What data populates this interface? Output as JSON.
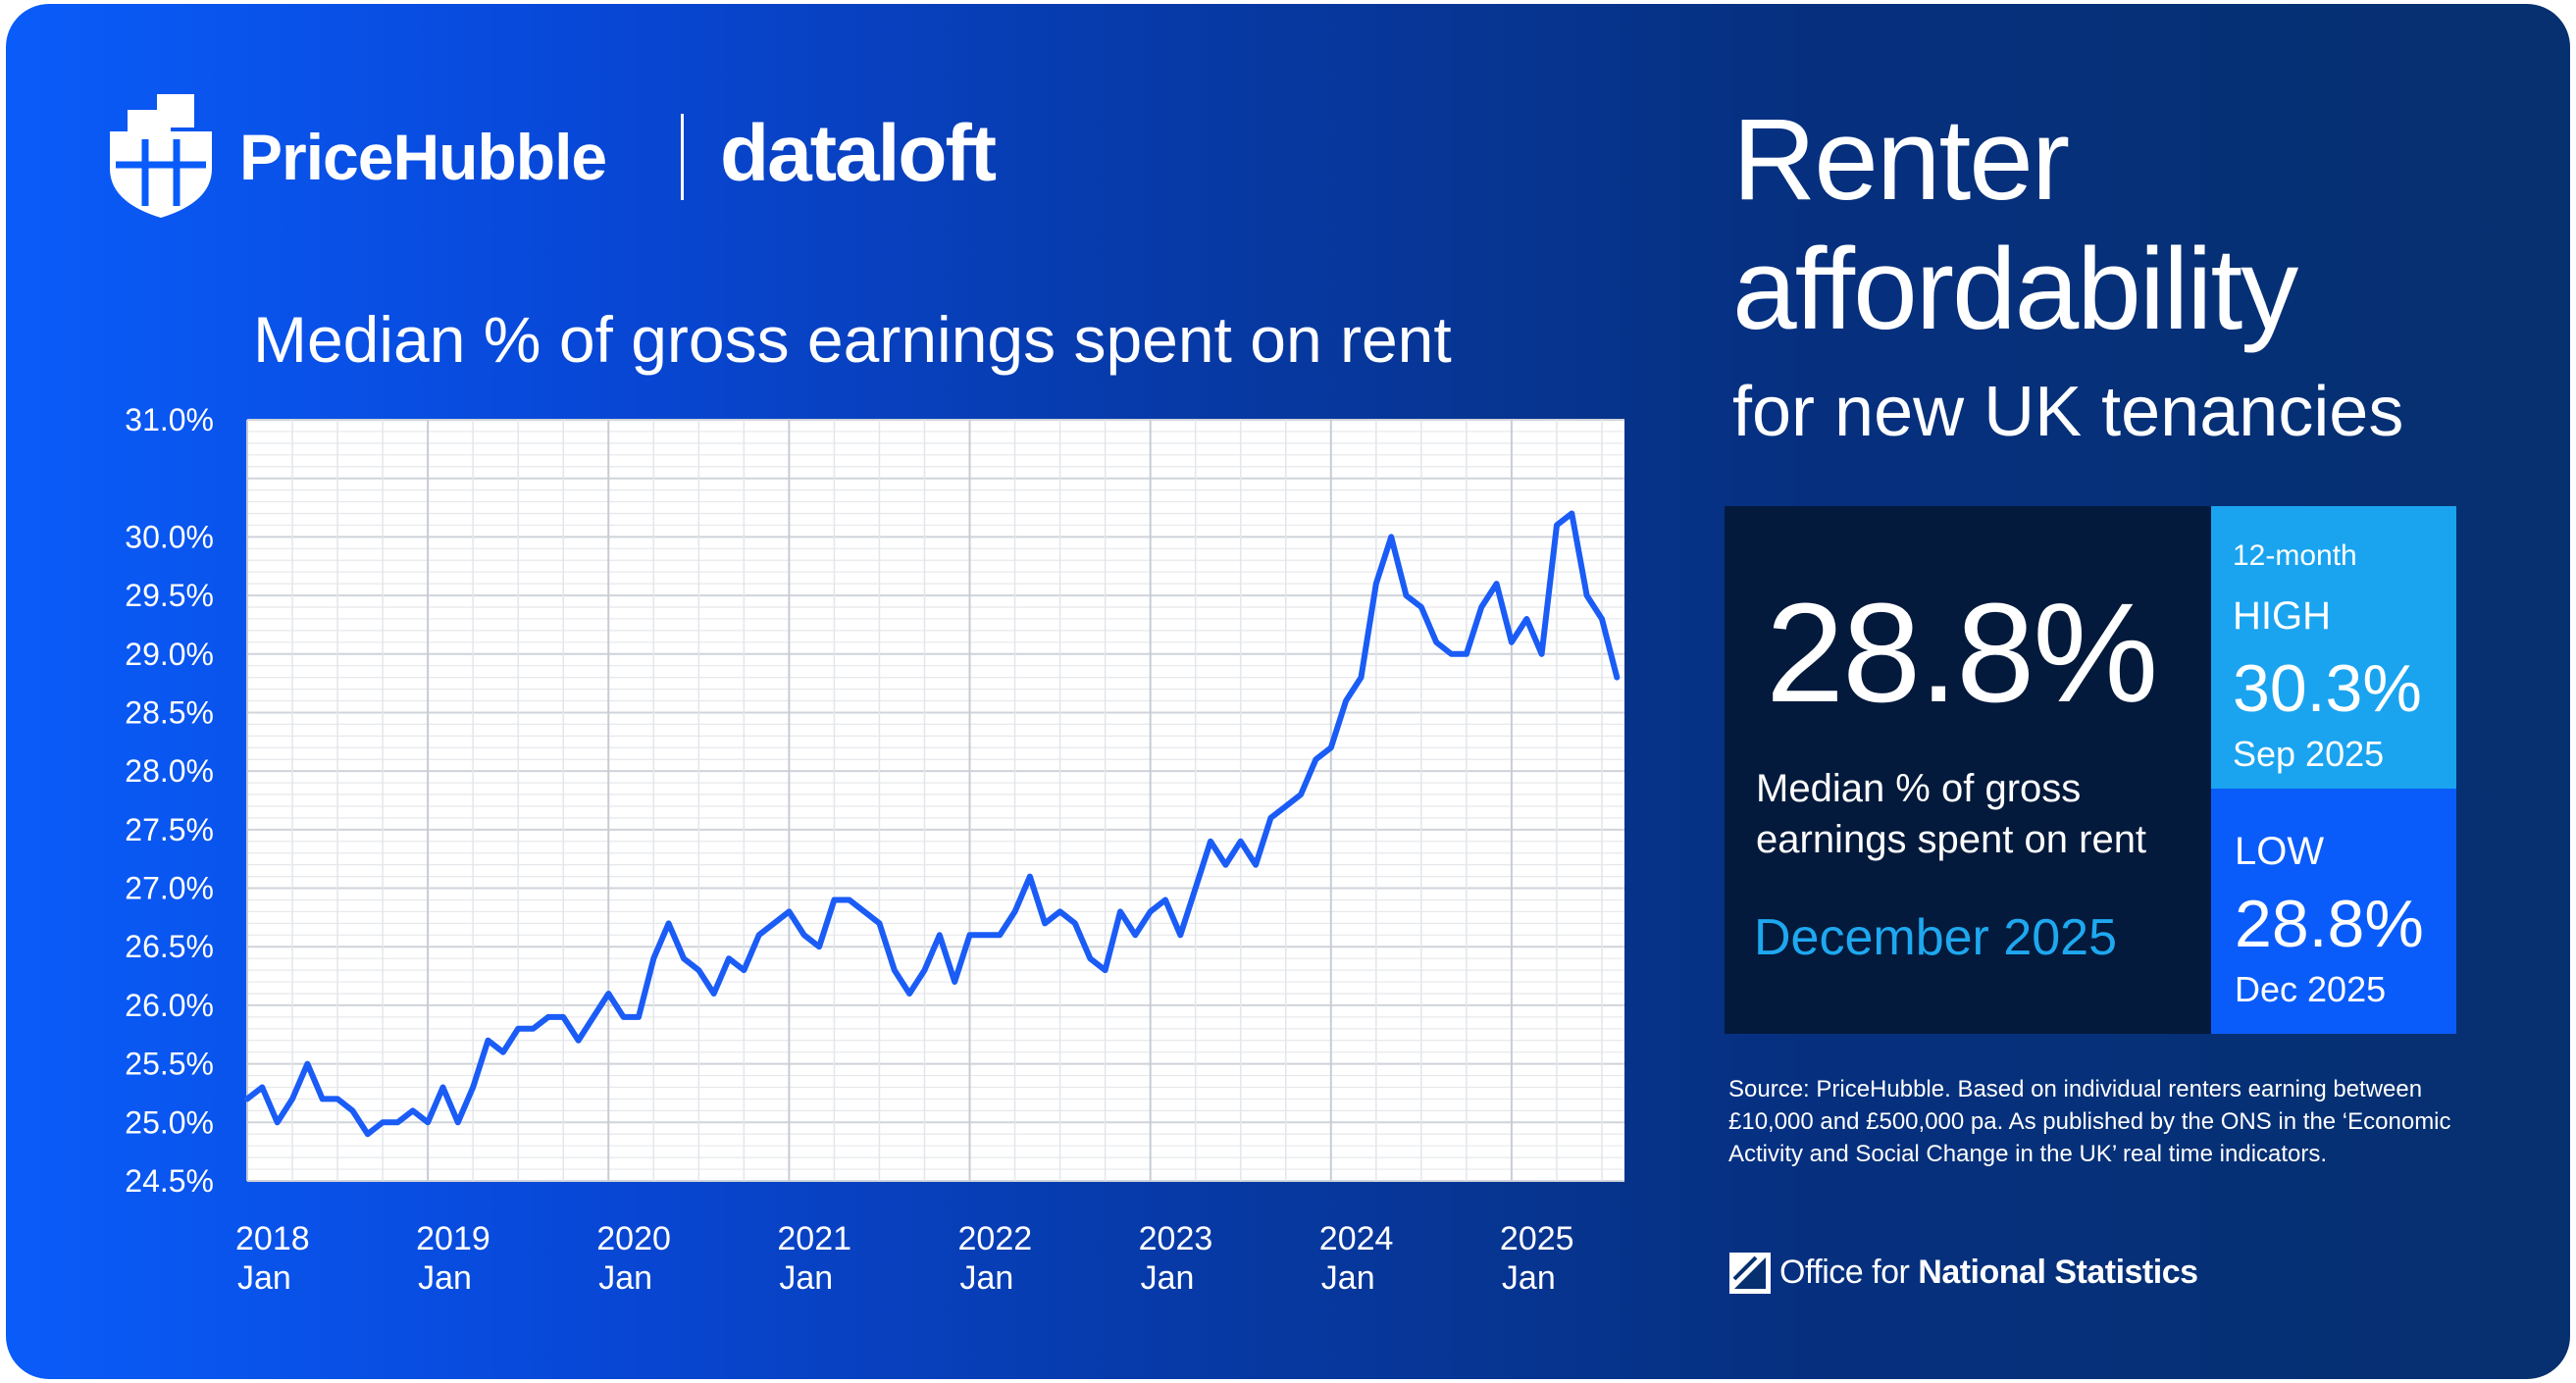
{
  "brand": {
    "name": "PriceHubble",
    "partner": "dataloft"
  },
  "headline": {
    "line1": "Renter",
    "line2": "affordability",
    "line3": "for new UK tenancies"
  },
  "kpi": {
    "value": "28.8%",
    "label": "Median % of gross earnings spent on rent",
    "date": "December 2025",
    "high": {
      "period": "12-month",
      "tag": "HIGH",
      "value": "30.3%",
      "date": "Sep 2025"
    },
    "low": {
      "tag": "LOW",
      "value": "28.8%",
      "date": "Dec 2025"
    }
  },
  "source_note": "Source: PriceHubble. Based on individual renters earning between £10,000 and £500,000 pa. As published by the ONS in the ‘Economic Activity and Social Change in the UK’ real time indicators.",
  "ons": {
    "prefix": "Office for ",
    "emphasis": "National Statistics"
  },
  "colors": {
    "line": "#1a5cf5",
    "card_left": "#0a5cfa",
    "card_right": "#06306f",
    "kpi_dark": "#041a3c",
    "kpi_high": "#1aa4f0",
    "kpi_low": "#0a5cfa",
    "accent_text": "#1ea8f0"
  },
  "chart_data": {
    "type": "line",
    "title": "Median % of gross earnings spent on rent",
    "ylim": [
      24.5,
      31.0
    ],
    "y_ticks": [
      "31.0%",
      "30.0%",
      "29.5%",
      "29.0%",
      "28.5%",
      "28.0%",
      "27.5%",
      "27.0%",
      "26.5%",
      "26.0%",
      "25.5%",
      "25.0%",
      "24.5%"
    ],
    "y_tick_values": [
      31.0,
      30.0,
      29.5,
      29.0,
      28.5,
      28.0,
      27.5,
      27.0,
      26.5,
      26.0,
      25.5,
      25.0,
      24.5
    ],
    "x_ticks": [
      {
        "year": "2018",
        "month": "Jan"
      },
      {
        "year": "2019",
        "month": "Jan"
      },
      {
        "year": "2020",
        "month": "Jan"
      },
      {
        "year": "2021",
        "month": "Jan"
      },
      {
        "year": "2022",
        "month": "Jan"
      },
      {
        "year": "2023",
        "month": "Jan"
      },
      {
        "year": "2024",
        "month": "Jan"
      },
      {
        "year": "2025",
        "month": "Jan"
      }
    ],
    "start": "2018-01",
    "grid": true,
    "series": [
      {
        "values": [
          25.2,
          25.3,
          25.0,
          25.2,
          25.5,
          25.2,
          25.2,
          25.1,
          24.9,
          25.0,
          25.0,
          25.1,
          25.0,
          25.3,
          25.0,
          25.3,
          25.7,
          25.6,
          25.8,
          25.8,
          25.9,
          25.9,
          25.7,
          25.9,
          26.1,
          25.9,
          25.9,
          26.4,
          26.7,
          26.4,
          26.3,
          26.1,
          26.4,
          26.3,
          26.6,
          26.7,
          26.8,
          26.6,
          26.5,
          26.9,
          26.9,
          26.8,
          26.7,
          26.3,
          26.1,
          26.3,
          26.6,
          26.2,
          26.6,
          26.6,
          26.6,
          26.8,
          27.1,
          26.7,
          26.8,
          26.7,
          26.4,
          26.3,
          26.8,
          26.6,
          26.8,
          26.9,
          26.6,
          27.0,
          27.4,
          27.2,
          27.4,
          27.2,
          27.6,
          27.7,
          27.8,
          28.1,
          28.2,
          28.6,
          28.8,
          29.6,
          30.0,
          29.5,
          29.4,
          29.1,
          29.0,
          29.0,
          29.4,
          29.6,
          29.1,
          29.3,
          29.0,
          30.1,
          30.2,
          29.5,
          29.3,
          28.8
        ]
      }
    ]
  }
}
